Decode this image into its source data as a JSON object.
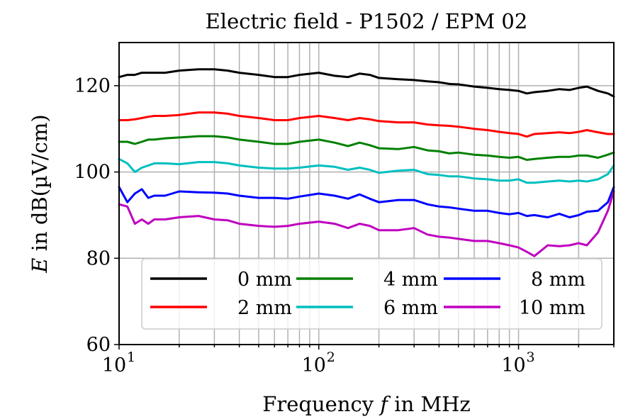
{
  "chart_data": {
    "type": "line",
    "title": "Electric field - P1502 / EPM 02",
    "xlabel": "Frequency f in MHz",
    "xlabel_parts": {
      "before": "Frequency ",
      "var": "f",
      "after": " in MHz"
    },
    "ylabel": "E in dB(µV/cm)",
    "ylabel_parts": {
      "var": "E",
      "after": " in dB(µV/cm)"
    },
    "xscale": "log",
    "xlim": [
      10,
      3000
    ],
    "ylim": [
      60,
      130
    ],
    "grid": true,
    "legend_position": "lower center",
    "x_ticks": [
      {
        "base": "10",
        "exp": "1",
        "value": 10
      },
      {
        "base": "10",
        "exp": "2",
        "value": 100
      },
      {
        "base": "10",
        "exp": "3",
        "value": 1000
      }
    ],
    "y_ticks": [
      {
        "label": "60",
        "value": 60
      },
      {
        "label": "80",
        "value": 80
      },
      {
        "label": "100",
        "value": 100
      },
      {
        "label": "120",
        "value": 120
      }
    ],
    "x": [
      10,
      11,
      12,
      13,
      14,
      15,
      17,
      20,
      25,
      30,
      35,
      40,
      50,
      60,
      70,
      80,
      100,
      120,
      140,
      160,
      180,
      200,
      250,
      300,
      350,
      400,
      450,
      500,
      600,
      700,
      800,
      900,
      1000,
      1100,
      1200,
      1400,
      1600,
      1800,
      2000,
      2200,
      2500,
      2800,
      3000
    ],
    "series": [
      {
        "name": "0 mm",
        "color": "#000000",
        "values": [
          122.0,
          122.5,
          122.5,
          123.0,
          123.0,
          123.0,
          123.0,
          123.5,
          123.8,
          123.8,
          123.5,
          123.0,
          122.5,
          122.0,
          122.0,
          122.5,
          123.0,
          122.3,
          122.0,
          122.8,
          122.5,
          121.8,
          121.5,
          121.3,
          121.0,
          120.8,
          120.4,
          120.3,
          119.8,
          119.5,
          119.2,
          119.0,
          118.8,
          118.2,
          118.5,
          118.8,
          119.2,
          119.0,
          119.5,
          119.8,
          118.8,
          118.2,
          117.5
        ]
      },
      {
        "name": "2 mm",
        "color": "#ff0000",
        "values": [
          112.0,
          112.0,
          112.2,
          112.5,
          112.8,
          113.0,
          113.0,
          113.2,
          113.8,
          113.8,
          113.5,
          113.0,
          112.5,
          112.0,
          112.0,
          112.5,
          113.0,
          112.5,
          112.0,
          112.5,
          112.2,
          111.8,
          111.5,
          111.5,
          111.0,
          110.8,
          110.7,
          110.5,
          110.0,
          109.7,
          109.3,
          109.0,
          108.8,
          108.2,
          108.8,
          109.0,
          109.2,
          109.0,
          109.3,
          109.7,
          109.2,
          108.8,
          108.8
        ]
      },
      {
        "name": "4 mm",
        "color": "#008000",
        "values": [
          107.0,
          107.0,
          106.5,
          107.0,
          107.5,
          107.5,
          107.8,
          108.0,
          108.3,
          108.3,
          108.0,
          107.5,
          107.0,
          106.5,
          106.5,
          107.0,
          107.5,
          106.8,
          106.0,
          106.8,
          106.2,
          105.5,
          105.3,
          105.8,
          105.0,
          104.8,
          104.3,
          104.5,
          104.0,
          103.8,
          103.5,
          103.3,
          103.5,
          102.8,
          103.0,
          103.3,
          103.5,
          103.5,
          103.8,
          103.8,
          103.3,
          104.0,
          104.5
        ]
      },
      {
        "name": "6 mm",
        "color": "#00bfbf",
        "values": [
          103.0,
          102.0,
          100.0,
          101.0,
          101.5,
          102.0,
          102.0,
          101.8,
          102.3,
          102.3,
          102.0,
          101.5,
          101.0,
          100.8,
          100.8,
          101.0,
          101.5,
          101.2,
          100.5,
          101.0,
          100.5,
          99.8,
          100.3,
          100.5,
          99.5,
          99.3,
          99.0,
          99.0,
          98.5,
          98.3,
          98.0,
          98.0,
          98.3,
          97.5,
          97.5,
          97.8,
          98.0,
          97.8,
          98.0,
          97.8,
          98.3,
          99.5,
          101.5
        ]
      },
      {
        "name": "8 mm",
        "color": "#0000ff",
        "values": [
          96.5,
          93.0,
          95.0,
          96.0,
          94.0,
          94.5,
          94.5,
          95.5,
          95.3,
          95.2,
          95.0,
          94.5,
          94.0,
          94.0,
          93.8,
          94.3,
          95.0,
          94.5,
          93.8,
          94.8,
          93.8,
          93.0,
          93.5,
          93.5,
          92.5,
          92.0,
          91.8,
          91.5,
          91.0,
          91.0,
          90.5,
          90.2,
          90.5,
          89.8,
          90.0,
          89.5,
          90.3,
          89.5,
          90.0,
          90.8,
          91.0,
          93.0,
          96.5
        ]
      },
      {
        "name": "10 mm",
        "color": "#bf00bf",
        "values": [
          92.5,
          92.0,
          88.0,
          89.0,
          88.0,
          89.0,
          89.0,
          89.5,
          89.8,
          89.0,
          88.8,
          88.0,
          87.5,
          87.3,
          87.5,
          88.0,
          88.5,
          88.0,
          87.0,
          88.0,
          87.5,
          86.5,
          86.5,
          87.0,
          85.5,
          85.0,
          84.8,
          84.5,
          84.0,
          84.0,
          83.5,
          83.0,
          82.5,
          81.5,
          80.5,
          83.0,
          82.8,
          83.0,
          83.5,
          83.0,
          86.0,
          91.0,
          95.5
        ]
      }
    ]
  }
}
